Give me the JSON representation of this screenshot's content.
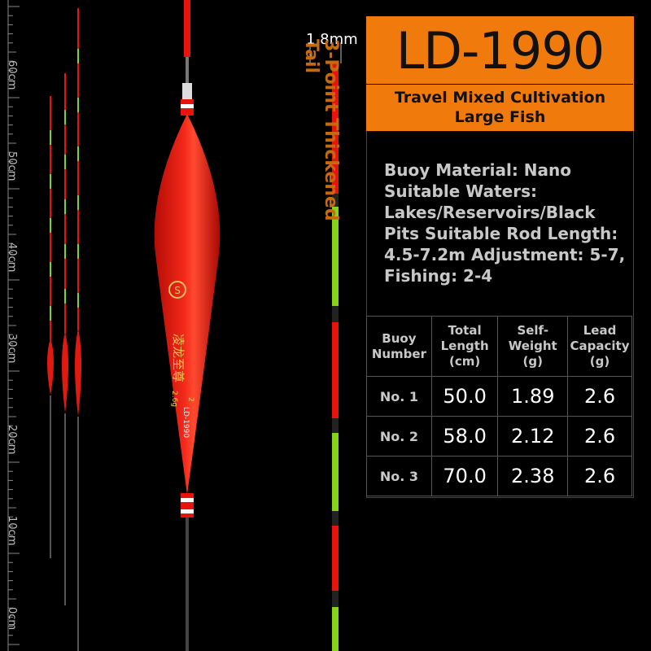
{
  "ruler": {
    "labels": [
      "60cm",
      "50cm",
      "40cm",
      "30cm",
      "20cm",
      "10cm",
      "0cm"
    ]
  },
  "float": {
    "brand_text": "凌龙至尊",
    "weight_mark": "2.6g",
    "number_mark": "2",
    "model_mark": "LD-1990"
  },
  "callout": {
    "diameter": "1.8mm",
    "tail_line1": "3-Point Thickened",
    "tail_line2": "Tail"
  },
  "product": {
    "model": "LD-1990",
    "subtitle_line1": "Travel Mixed Cultivation",
    "subtitle_line2": "Large Fish"
  },
  "specs": {
    "lines": [
      "Buoy Material: Nano",
      "Suitable Waters:",
      "Lakes/Reservoirs/Black",
      "Pits Suitable Rod Length:",
      "4.5-7.2m Adjustment: 5-7,",
      "Fishing: 2-4"
    ]
  },
  "table": {
    "headers": [
      "Buoy Number",
      "Total Length (cm)",
      "Self-Weight (g)",
      "Lead Capacity (g)"
    ],
    "rows": [
      {
        "no": "No. 1",
        "length": "50.0",
        "weight": "1.89",
        "lead": "2.6"
      },
      {
        "no": "No. 2",
        "length": "58.0",
        "weight": "2.12",
        "lead": "2.6"
      },
      {
        "no": "No. 3",
        "length": "70.0",
        "weight": "2.38",
        "lead": "2.6"
      }
    ]
  },
  "colors": {
    "accent_orange": "#f07b0c",
    "float_red": "#e8140c",
    "tail_green": "#86d41a",
    "callout_text": "#c66a0e"
  }
}
